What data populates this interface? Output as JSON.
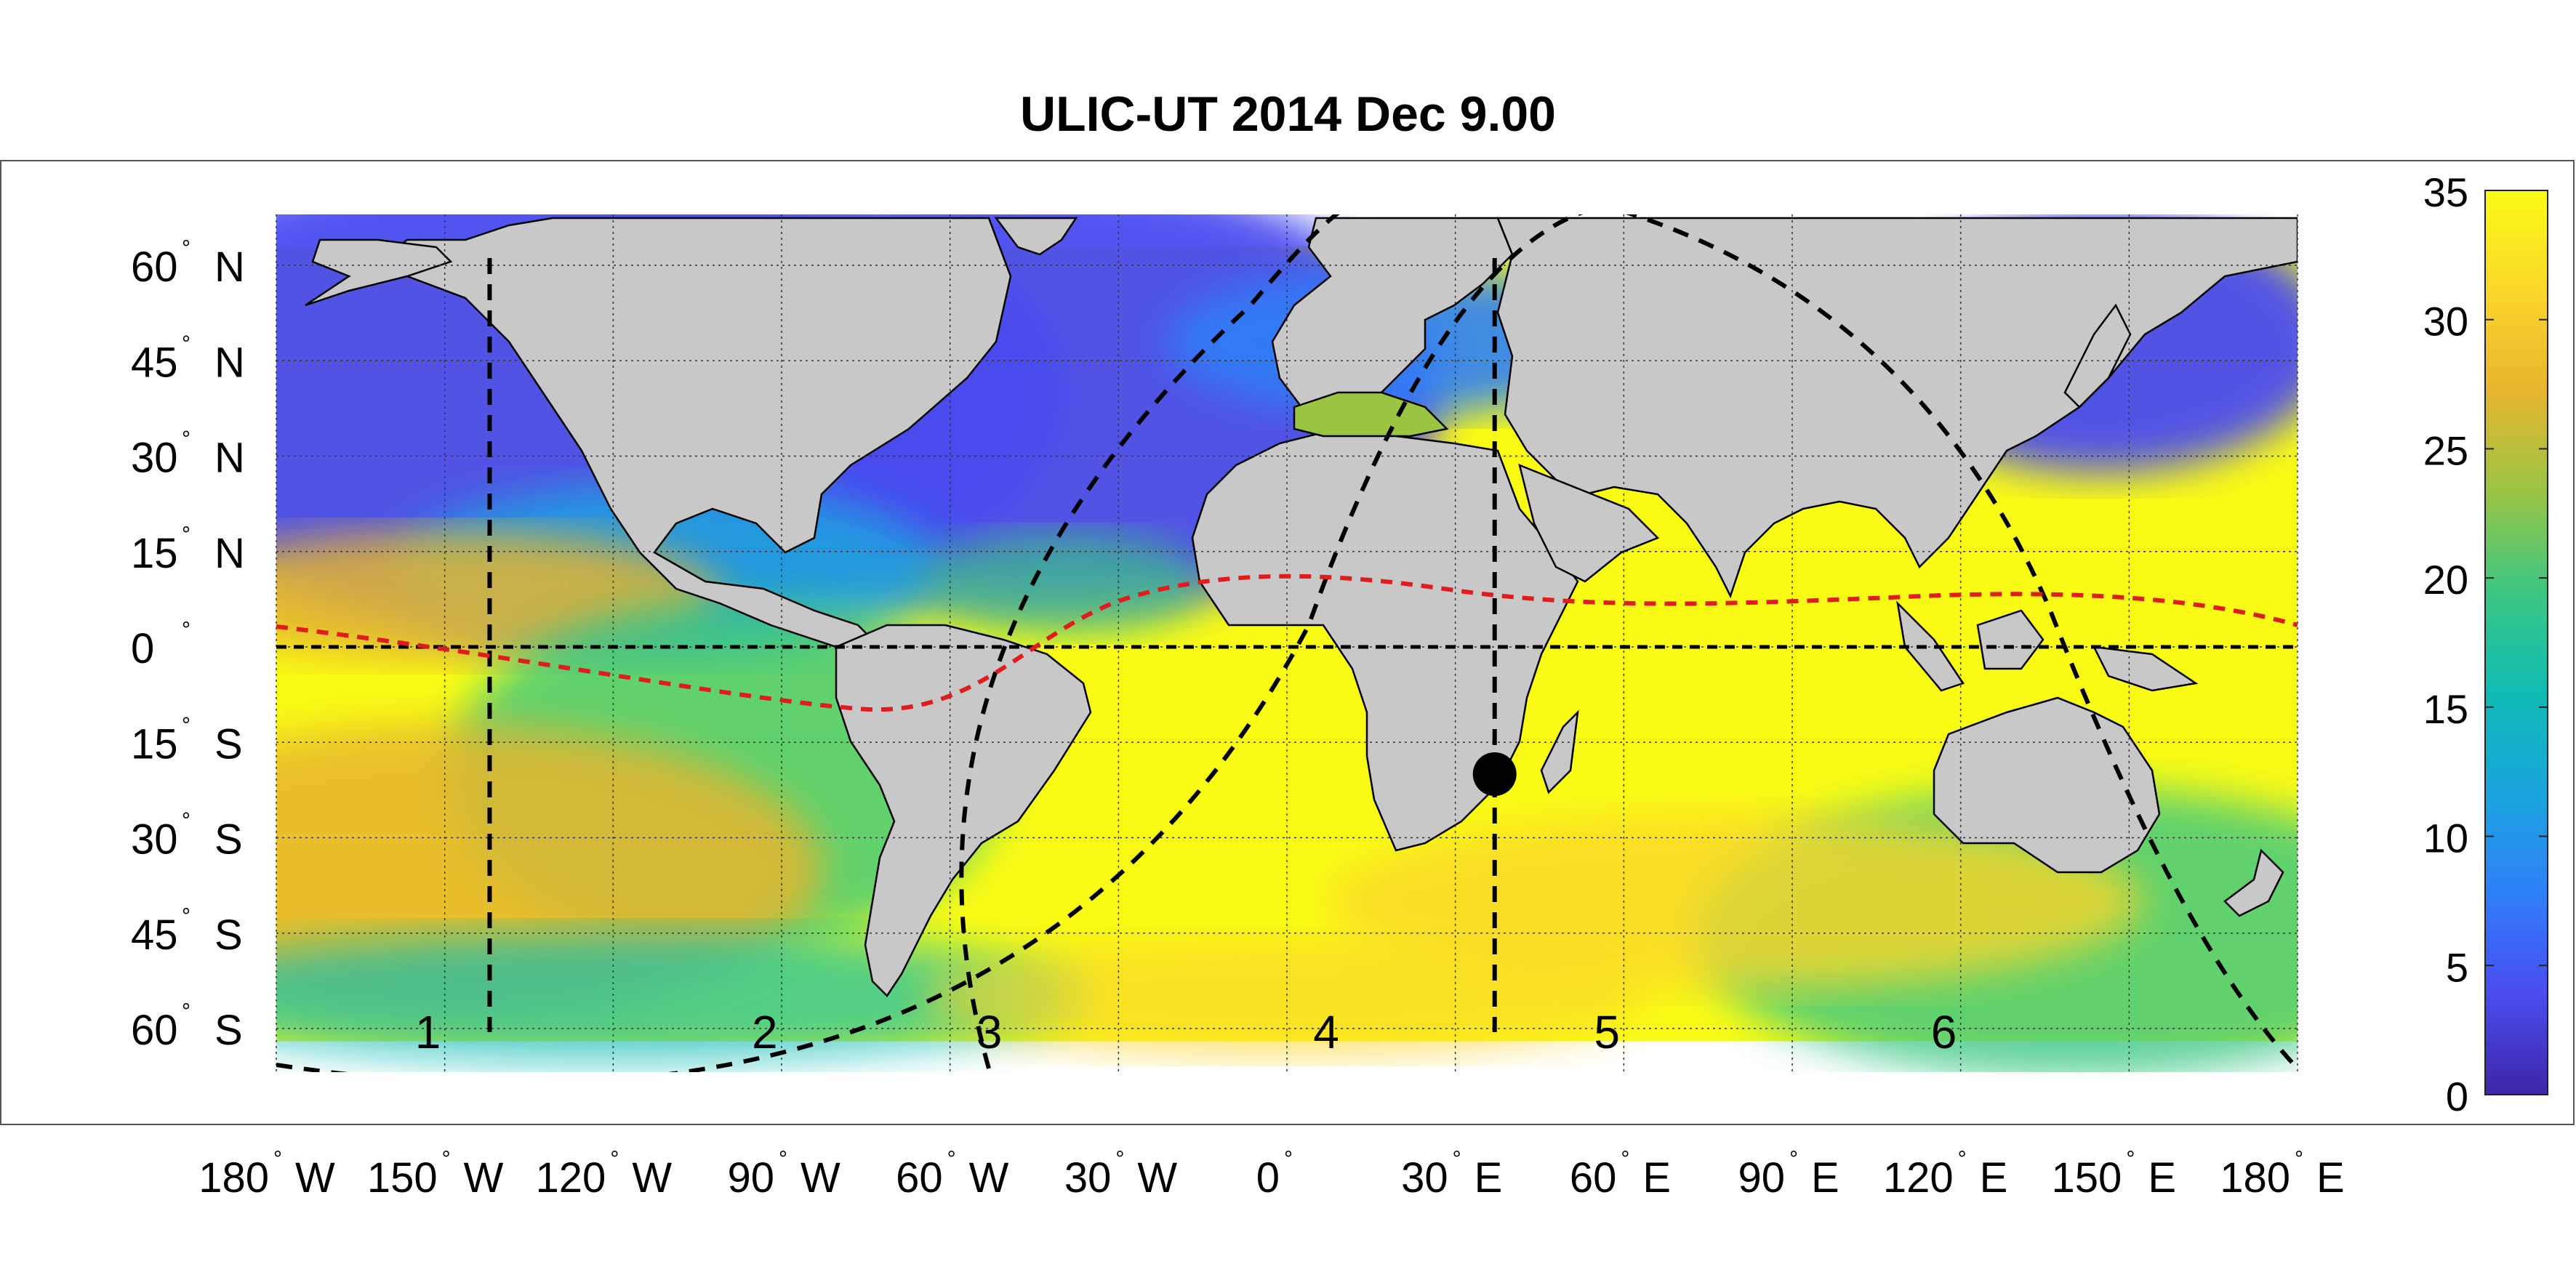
{
  "title": "ULIC-UT 2014 Dec  9.00",
  "lat_labels": [
    {
      "deg": "60",
      "hemi": "N",
      "lat": 60
    },
    {
      "deg": "45",
      "hemi": "N",
      "lat": 45
    },
    {
      "deg": "30",
      "hemi": "N",
      "lat": 30
    },
    {
      "deg": "15",
      "hemi": "N",
      "lat": 15
    },
    {
      "deg": "0",
      "hemi": "",
      "lat": 0
    },
    {
      "deg": "15",
      "hemi": "S",
      "lat": -15
    },
    {
      "deg": "30",
      "hemi": "S",
      "lat": -30
    },
    {
      "deg": "45",
      "hemi": "S",
      "lat": -45
    },
    {
      "deg": "60",
      "hemi": "S",
      "lat": -60
    }
  ],
  "lon_labels": [
    {
      "deg": "180",
      "hemi": "W",
      "lon": -180
    },
    {
      "deg": "150",
      "hemi": "W",
      "lon": -150
    },
    {
      "deg": "120",
      "hemi": "W",
      "lon": -120
    },
    {
      "deg": "90",
      "hemi": "W",
      "lon": -90
    },
    {
      "deg": "60",
      "hemi": "W",
      "lon": -60
    },
    {
      "deg": "30",
      "hemi": "W",
      "lon": -30
    },
    {
      "deg": "0",
      "hemi": "",
      "lon": 0
    },
    {
      "deg": "30",
      "hemi": "E",
      "lon": 30
    },
    {
      "deg": "60",
      "hemi": "E",
      "lon": 60
    },
    {
      "deg": "90",
      "hemi": "E",
      "lon": 90
    },
    {
      "deg": "120",
      "hemi": "E",
      "lon": 120
    },
    {
      "deg": "150",
      "hemi": "E",
      "lon": 150
    },
    {
      "deg": "180",
      "hemi": "E",
      "lon": 180
    }
  ],
  "zone_labels": [
    {
      "text": "1",
      "lon": -153
    },
    {
      "text": "2",
      "lon": -93
    },
    {
      "text": "3",
      "lon": -53
    },
    {
      "text": "4",
      "lon": 7
    },
    {
      "text": "5",
      "lon": 57
    },
    {
      "text": "6",
      "lon": 117
    }
  ],
  "colorbar": {
    "min": 0,
    "max": 35,
    "ticks": [
      "0",
      "5",
      "10",
      "15",
      "20",
      "25",
      "30",
      "35"
    ],
    "colors": [
      "#3e26a8",
      "#4a4cf0",
      "#2f7ff8",
      "#1aa5de",
      "#0fbcb4",
      "#3bc783",
      "#9ac543",
      "#e6b52e",
      "#fbd72a",
      "#f9fb15"
    ]
  },
  "colors": {
    "land": "#c8c8c8",
    "equator_line": "#000000",
    "terminator_line": "#e11c1c",
    "marker": "#000000"
  },
  "map": {
    "lon_range": [
      -180,
      180
    ],
    "lat_range": [
      -60,
      60
    ],
    "data_lat_range": [
      -62,
      63
    ],
    "meridian_lon": 37,
    "west_meridian_lon": -142,
    "marker": {
      "lon": 37,
      "lat": -20
    }
  }
}
